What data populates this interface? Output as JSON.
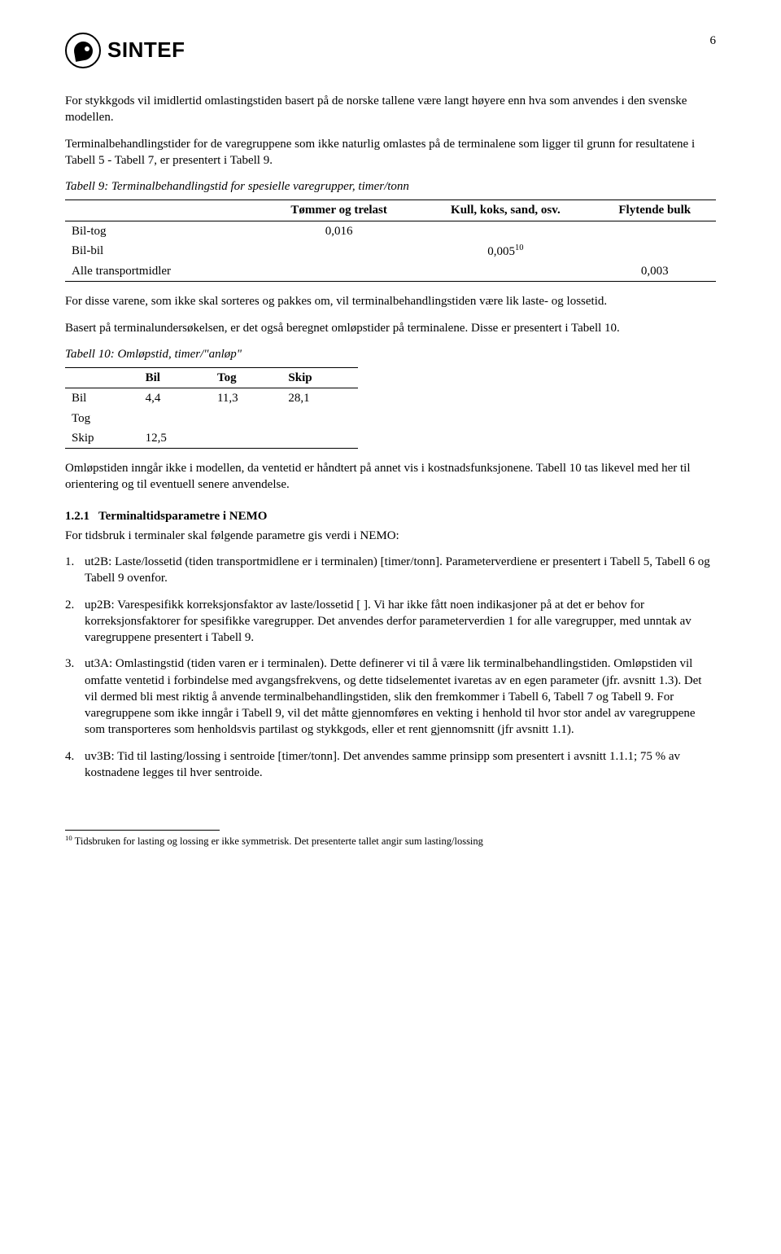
{
  "header": {
    "brand": "SINTEF",
    "page_number": "6"
  },
  "para_intro": "For stykkgods vil imidlertid omlastingstiden basert på de norske tallene være langt høyere enn hva som anvendes i den svenske modellen.",
  "para_intro2": "Terminalbehandlingstider for de varegruppene som ikke naturlig omlastes på de terminalene som ligger til grunn for resultatene i Tabell 5 - Tabell 7, er presentert i Tabell 9.",
  "table9": {
    "caption": "Tabell 9: Terminalbehandlingstid for spesielle varegrupper, timer/tonn",
    "headers": [
      "",
      "Tømmer og trelast",
      "Kull, koks, sand, osv.",
      "Flytende bulk"
    ],
    "rows": [
      {
        "label": "Bil-tog",
        "c1": "0,016",
        "c2": "",
        "c3": ""
      },
      {
        "label": "Bil-bil",
        "c1": "",
        "c2": "0,005",
        "c2_sup": "10",
        "c3": ""
      },
      {
        "label": "Alle transportmidler",
        "c1": "",
        "c2": "",
        "c3": "0,003"
      }
    ]
  },
  "para_after_t9a": "For disse varene, som ikke skal sorteres og pakkes om, vil terminalbehandlingstiden være lik laste- og lossetid.",
  "para_after_t9b": "Basert på terminalundersøkelsen, er det også beregnet omløpstider på terminalene. Disse er presentert i Tabell 10.",
  "table10": {
    "caption": "Tabell 10: Omløpstid, timer/\"anløp\"",
    "headers": [
      "",
      "Bil",
      "Tog",
      "Skip"
    ],
    "rows": [
      {
        "label": "Bil",
        "bil": "4,4",
        "tog": "11,3",
        "skip": "28,1"
      },
      {
        "label": "Tog",
        "bil": "",
        "tog": "",
        "skip": ""
      },
      {
        "label": "Skip",
        "bil": "12,5",
        "tog": "",
        "skip": ""
      }
    ]
  },
  "para_after_t10": "Omløpstiden inngår ikke i modellen, da ventetid er håndtert på annet vis i kostnadsfunksjonene. Tabell 10 tas likevel med her til orientering og til eventuell senere anvendelse.",
  "section": {
    "num": "1.2.1",
    "title": "Terminaltidsparametre i NEMO",
    "lead": "For tidsbruk i terminaler skal følgende parametre gis verdi i NEMO:",
    "items": [
      "ut2B: Laste/lossetid (tiden transportmidlene er i terminalen) [timer/tonn]. Parameterverdiene er presentert i Tabell 5, Tabell 6 og Tabell 9 ovenfor.",
      "up2B: Varespesifikk korreksjonsfaktor av laste/lossetid [ ]. Vi har ikke fått noen indikasjoner på at det er behov for korreksjonsfaktorer for spesifikke varegrupper. Det anvendes derfor parameterverdien 1 for alle varegrupper, med unntak av varegruppene presentert i Tabell 9.",
      "ut3A: Omlastingstid (tiden varen er i terminalen). Dette definerer vi til å være lik terminalbehandlingstiden. Omløpstiden vil omfatte ventetid i forbindelse med avgangsfrekvens, og dette tidselementet ivaretas av en egen parameter (jfr. avsnitt 1.3). Det vil dermed bli mest riktig å anvende terminalbehandlingstiden, slik den fremkommer i Tabell 6, Tabell 7 og Tabell 9. For varegruppene som ikke inngår i Tabell 9, vil det måtte gjennomføres en vekting i henhold til hvor stor andel av varegruppene som transporteres som henholdsvis partilast og stykkgods, eller et rent gjennomsnitt (jfr avsnitt 1.1).",
      "uv3B: Tid til lasting/lossing i sentroide [timer/tonn]. Det anvendes samme prinsipp som presentert i avsnitt 1.1.1; 75 % av kostnadene legges til hver sentroide."
    ]
  },
  "footnote": {
    "num": "10",
    "text": " Tidsbruken for lasting og lossing er ikke symmetrisk. Det presenterte tallet angir sum lasting/lossing"
  }
}
